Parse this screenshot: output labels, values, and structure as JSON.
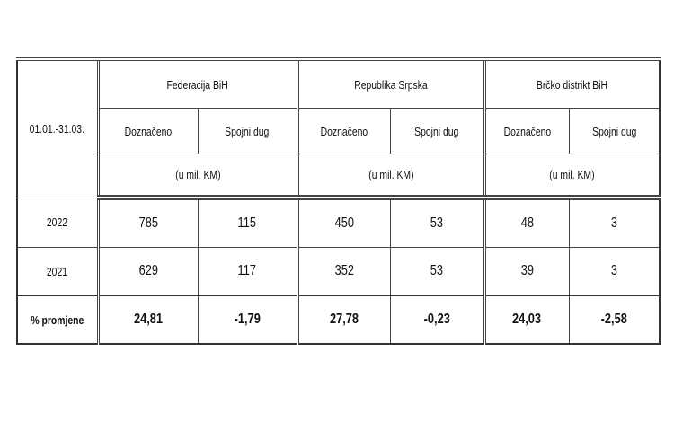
{
  "table": {
    "period": "01.01.-31.03.",
    "groups": [
      {
        "name": "Federacija BiH",
        "columns": [
          "Doznačeno",
          "Spojni dug"
        ],
        "unit": "(u mil. KM)"
      },
      {
        "name": "Republika Srpska",
        "columns": [
          "Doznačeno",
          "Spojni dug"
        ],
        "unit": "(u mil. KM)"
      },
      {
        "name": "Brčko distrikt BiH",
        "columns": [
          "Doznačeno",
          "Spojni dug"
        ],
        "unit": "(u mil. KM)"
      }
    ],
    "rows": [
      {
        "label": "2022",
        "cells": [
          "785",
          "115",
          "450",
          "53",
          "48",
          "3"
        ]
      },
      {
        "label": "2021",
        "cells": [
          "629",
          "117",
          "352",
          "53",
          "39",
          "3"
        ]
      },
      {
        "label": "% promjene",
        "cells": [
          "24,81",
          "-1,79",
          "27,78",
          "-0,23",
          "24,03",
          "-2,58"
        ]
      }
    ]
  }
}
